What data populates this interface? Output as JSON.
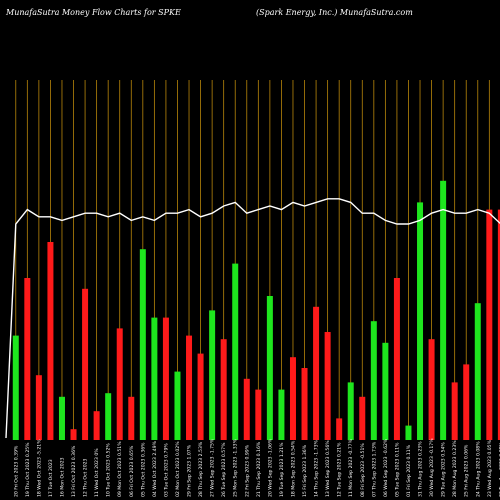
{
  "header": {
    "title_left": "MunafaSutra  Money Flow  Charts for SPKE",
    "title_right": "(Spark Energy,  Inc.) MunafaSutra.com"
  },
  "colors": {
    "background": "#000000",
    "gridline": "#b8860b",
    "up_bar": "#1ee61e",
    "down_bar": "#ff1a1a",
    "line": "#ffffff"
  },
  "chart_data": {
    "type": "bar",
    "title": "MunafaSutra  Money Flow  Charts for SPKE",
    "subtitle": "(Spark Energy,  Inc.) MunafaSutra.com",
    "xlabel": "",
    "ylabel": "",
    "ylim": [
      0,
      100
    ],
    "grid": true,
    "categories": [
      "20 Fri Oct 2023 0.39%",
      "19 Thu Oct 2023 0.25%",
      "18 Wed Oct 2023 -5.21%",
      "17 Tue Oct 2023",
      "16 Mon Oct 2023",
      "13 Fri Oct 2023 0.36%",
      "12 Thu Oct 2023",
      "11 Wed Oct 2023 0%",
      "10 Tue Oct 2023 0.52%",
      "09 Mon Oct 2023 0.51%",
      "06 Fri Oct 2023 0.65%",
      "05 Thu Oct 2023 0.36%",
      "04 Wed Oct 2023 2.49%",
      "03 Tue Oct 2023 0.79%",
      "02 Mon Oct 2023 0.02%",
      "29 Fri Sep 2023 1.07%",
      "28 Thu Sep 2023 2.53%",
      "27 Wed Sep 2023 -1.75%",
      "26 Tue Sep 2023 0.57%",
      "25 Mon Sep 2023 -1.33%",
      "22 Fri Sep 2023 0.99%",
      "21 Thu Sep 2023 0.16%",
      "20 Wed Sep 2023 -1.06%",
      "19 Tue Sep 2023 1.21%",
      "18 Mon Sep 2023 0.54%",
      "15 Fri Sep 2023 1.36%",
      "14 Thu Sep 2023 -1.73%",
      "13 Wed Sep 2023 0.56%",
      "12 Tue Sep 2023 0.21%",
      "11 Mon Sep 2023 -0.77%",
      "08 Fri Sep 2023 -0.51%",
      "07 Thu Sep 2023 1.73%",
      "06 Wed Sep 2023 -0.62%",
      "05 Tue Sep 2023 0.11%",
      "01 Fri Sep 2023 0.11%",
      "31 Thu Aug 2023 0.23%",
      "30 Wed Aug 2023 -0.17%",
      "29 Tue Aug 2023 0.54%",
      "28 Mon Aug 2023 0.23%",
      "25 Fri Aug 2023 0.06%",
      "24 Thu Aug 2023 0.08%",
      "23 Wed Aug 2023 0.05%",
      "22 Tue Aug 2023 0.08%"
    ],
    "series": [
      {
        "values": [
          29,
          45,
          18,
          55,
          12,
          3,
          42,
          8,
          13,
          31,
          12,
          53,
          34,
          34,
          19,
          29,
          24,
          36,
          28,
          49,
          17,
          14,
          40,
          14,
          23,
          20,
          37,
          30,
          6,
          16,
          12,
          33,
          27,
          45,
          4,
          66,
          28,
          72,
          16,
          21,
          38,
          64,
          64
        ],
        "colors": [
          "green",
          "red",
          "red",
          "red",
          "green",
          "red",
          "red",
          "red",
          "green",
          "red",
          "red",
          "green",
          "green",
          "red",
          "green",
          "red",
          "red",
          "green",
          "red",
          "green",
          "red",
          "red",
          "green",
          "green",
          "red",
          "red",
          "red",
          "red",
          "red",
          "green",
          "red",
          "green",
          "green",
          "red",
          "green",
          "green",
          "red",
          "green",
          "red",
          "red",
          "green",
          "red",
          "red"
        ]
      },
      {
        "type": "line",
        "values": [
          60,
          64,
          62,
          62,
          61,
          62,
          63,
          63,
          62,
          63,
          61,
          62,
          61,
          63,
          63,
          64,
          62,
          63,
          65,
          66,
          63,
          64,
          65,
          64,
          66,
          65,
          66,
          67,
          67,
          66,
          63,
          63,
          61,
          60,
          60,
          61,
          63,
          64,
          63,
          63,
          64,
          63,
          60
        ]
      }
    ]
  }
}
